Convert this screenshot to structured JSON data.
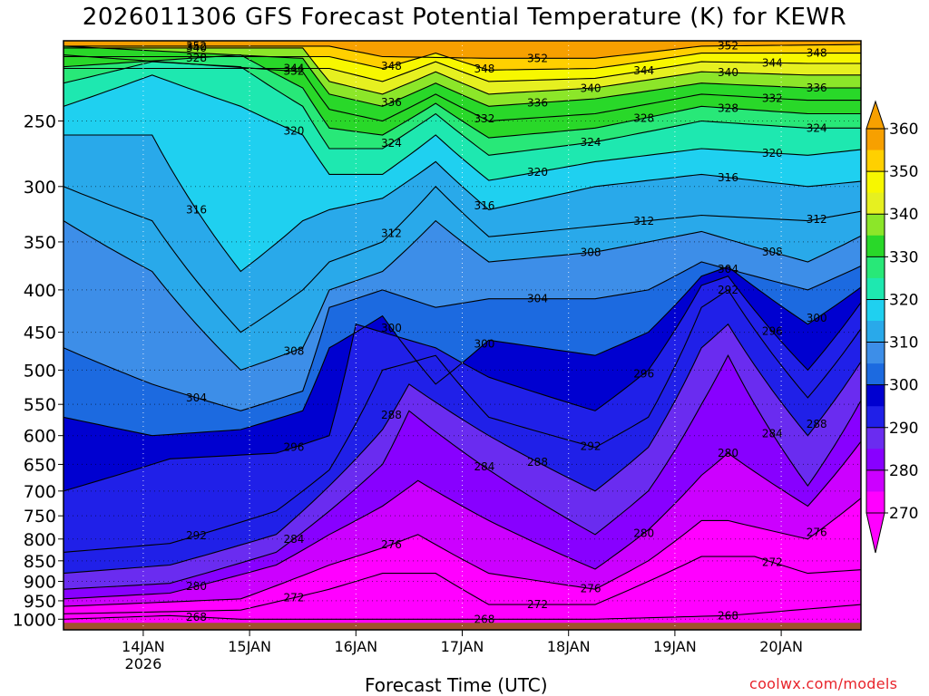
{
  "title": "2026011306 GFS Forecast Potential Temperature (K) for KEWR",
  "credit": "coolwx.com/models",
  "chart_data": {
    "type": "heatmap",
    "title": "2026011306 GFS Forecast Potential Temperature (K) for KEWR",
    "xlabel": "Forecast Time (UTC)",
    "ylabel": "",
    "x_start": "2026-01-13 06Z",
    "x_end": "2026-01-20 18Z",
    "x_ticks": [
      {
        "label": "14JAN",
        "sublabel": "2026",
        "time": "2026-01-14 00Z"
      },
      {
        "label": "15JAN",
        "sublabel": "",
        "time": "2026-01-15 00Z"
      },
      {
        "label": "16JAN",
        "sublabel": "",
        "time": "2026-01-16 00Z"
      },
      {
        "label": "17JAN",
        "sublabel": "",
        "time": "2026-01-17 00Z"
      },
      {
        "label": "18JAN",
        "sublabel": "",
        "time": "2026-01-18 00Z"
      },
      {
        "label": "19JAN",
        "sublabel": "",
        "time": "2026-01-19 00Z"
      },
      {
        "label": "20JAN",
        "sublabel": "",
        "time": "2026-01-20 00Z"
      }
    ],
    "y_scale": "log",
    "y_inverted": true,
    "ylim": [
      1030,
      200
    ],
    "y_ticks": [
      250,
      300,
      350,
      400,
      450,
      500,
      550,
      600,
      650,
      700,
      750,
      800,
      850,
      900,
      950,
      1000
    ],
    "grid": true,
    "color_scale": {
      "min": 270,
      "max": 360,
      "tick_labels": [
        360,
        350,
        340,
        330,
        320,
        310,
        300,
        290,
        280,
        270
      ],
      "colors": [
        "#ff00ff",
        "#cc00ff",
        "#8800ff",
        "#6a2cf0",
        "#2020e8",
        "#0000d0",
        "#1c6ae0",
        "#3d8ee8",
        "#29a9ea",
        "#1fd0f0",
        "#1ee8b0",
        "#28e878",
        "#29d829",
        "#8ce629",
        "#e6f020",
        "#f7f700",
        "#ffd000",
        "#f7a000"
      ]
    },
    "isotherms": [
      {
        "value": 268,
        "series": [
          [
            0,
            1000
          ],
          [
            24,
            990
          ],
          [
            40,
            1000
          ],
          [
            72,
            1000
          ],
          [
            120,
            1000
          ],
          [
            150,
            990
          ],
          [
            180,
            960
          ],
          [
            182,
            1000
          ]
        ]
      },
      {
        "value": 272,
        "series": [
          [
            0,
            985
          ],
          [
            40,
            975
          ],
          [
            60,
            920
          ],
          [
            72,
            880
          ],
          [
            84,
            880
          ],
          [
            96,
            960
          ],
          [
            120,
            960
          ],
          [
            132,
            900
          ],
          [
            144,
            840
          ],
          [
            156,
            840
          ],
          [
            168,
            880
          ],
          [
            182,
            870
          ]
        ]
      },
      {
        "value": 276,
        "series": [
          [
            0,
            965
          ],
          [
            40,
            945
          ],
          [
            60,
            860
          ],
          [
            72,
            820
          ],
          [
            80,
            790
          ],
          [
            96,
            880
          ],
          [
            120,
            920
          ],
          [
            132,
            850
          ],
          [
            144,
            760
          ],
          [
            150,
            760
          ],
          [
            168,
            800
          ],
          [
            182,
            700
          ]
        ]
      },
      {
        "value": 280,
        "series": [
          [
            0,
            945
          ],
          [
            24,
            930
          ],
          [
            48,
            860
          ],
          [
            60,
            790
          ],
          [
            72,
            730
          ],
          [
            80,
            680
          ],
          [
            96,
            760
          ],
          [
            120,
            870
          ],
          [
            132,
            780
          ],
          [
            144,
            670
          ],
          [
            150,
            630
          ],
          [
            168,
            730
          ],
          [
            182,
            590
          ]
        ]
      },
      {
        "value": 284,
        "series": [
          [
            0,
            920
          ],
          [
            24,
            905
          ],
          [
            48,
            830
          ],
          [
            60,
            740
          ],
          [
            72,
            650
          ],
          [
            78,
            560
          ],
          [
            96,
            660
          ],
          [
            120,
            790
          ],
          [
            132,
            700
          ],
          [
            144,
            550
          ],
          [
            150,
            480
          ],
          [
            168,
            690
          ],
          [
            182,
            520
          ]
        ]
      },
      {
        "value": 288,
        "series": [
          [
            0,
            880
          ],
          [
            24,
            860
          ],
          [
            48,
            790
          ],
          [
            60,
            690
          ],
          [
            72,
            590
          ],
          [
            78,
            520
          ],
          [
            96,
            600
          ],
          [
            120,
            700
          ],
          [
            132,
            620
          ],
          [
            144,
            470
          ],
          [
            150,
            440
          ],
          [
            168,
            600
          ],
          [
            182,
            470
          ]
        ]
      },
      {
        "value": 292,
        "series": [
          [
            0,
            830
          ],
          [
            24,
            810
          ],
          [
            48,
            740
          ],
          [
            60,
            660
          ],
          [
            72,
            500
          ],
          [
            84,
            480
          ],
          [
            96,
            570
          ],
          [
            120,
            620
          ],
          [
            132,
            570
          ],
          [
            144,
            420
          ],
          [
            150,
            400
          ],
          [
            168,
            540
          ],
          [
            182,
            430
          ]
        ]
      },
      {
        "value": 296,
        "series": [
          [
            0,
            700
          ],
          [
            24,
            640
          ],
          [
            48,
            630
          ],
          [
            60,
            600
          ],
          [
            66,
            440
          ],
          [
            84,
            470
          ],
          [
            96,
            510
          ],
          [
            120,
            560
          ],
          [
            132,
            500
          ],
          [
            144,
            395
          ],
          [
            150,
            385
          ],
          [
            168,
            500
          ],
          [
            182,
            400
          ]
        ]
      },
      {
        "value": 300,
        "series": [
          [
            0,
            570
          ],
          [
            20,
            600
          ],
          [
            40,
            590
          ],
          [
            54,
            560
          ],
          [
            60,
            470
          ],
          [
            72,
            430
          ],
          [
            84,
            520
          ],
          [
            96,
            460
          ],
          [
            120,
            480
          ],
          [
            132,
            450
          ],
          [
            144,
            385
          ],
          [
            150,
            375
          ],
          [
            168,
            440
          ],
          [
            182,
            390
          ]
        ]
      },
      {
        "value": 304,
        "series": [
          [
            0,
            470
          ],
          [
            20,
            520
          ],
          [
            40,
            560
          ],
          [
            54,
            530
          ],
          [
            60,
            420
          ],
          [
            72,
            400
          ],
          [
            84,
            420
          ],
          [
            96,
            410
          ],
          [
            120,
            410
          ],
          [
            132,
            400
          ],
          [
            144,
            370
          ],
          [
            168,
            400
          ],
          [
            182,
            370
          ]
        ]
      },
      {
        "value": 308,
        "series": [
          [
            0,
            330
          ],
          [
            20,
            380
          ],
          [
            40,
            500
          ],
          [
            54,
            470
          ],
          [
            60,
            400
          ],
          [
            72,
            380
          ],
          [
            84,
            330
          ],
          [
            96,
            370
          ],
          [
            120,
            360
          ],
          [
            144,
            340
          ],
          [
            168,
            370
          ],
          [
            182,
            340
          ]
        ]
      },
      {
        "value": 312,
        "series": [
          [
            0,
            300
          ],
          [
            20,
            330
          ],
          [
            40,
            450
          ],
          [
            54,
            400
          ],
          [
            60,
            370
          ],
          [
            72,
            350
          ],
          [
            84,
            300
          ],
          [
            96,
            345
          ],
          [
            120,
            335
          ],
          [
            144,
            325
          ],
          [
            168,
            330
          ],
          [
            182,
            320
          ]
        ]
      },
      {
        "value": 316,
        "series": [
          [
            0,
            260
          ],
          [
            20,
            260
          ],
          [
            40,
            380
          ],
          [
            54,
            330
          ],
          [
            60,
            320
          ],
          [
            72,
            310
          ],
          [
            84,
            280
          ],
          [
            96,
            320
          ],
          [
            120,
            300
          ],
          [
            144,
            290
          ],
          [
            168,
            300
          ],
          [
            182,
            295
          ]
        ]
      },
      {
        "value": 320,
        "series": [
          [
            0,
            240
          ],
          [
            20,
            220
          ],
          [
            40,
            240
          ],
          [
            54,
            260
          ],
          [
            60,
            290
          ],
          [
            72,
            290
          ],
          [
            84,
            260
          ],
          [
            96,
            295
          ],
          [
            120,
            280
          ],
          [
            144,
            270
          ],
          [
            168,
            275
          ],
          [
            182,
            270
          ]
        ]
      },
      {
        "value": 324,
        "series": [
          [
            0,
            225
          ],
          [
            20,
            212
          ],
          [
            40,
            215
          ],
          [
            54,
            240
          ],
          [
            60,
            270
          ],
          [
            72,
            270
          ],
          [
            84,
            245
          ],
          [
            96,
            275
          ],
          [
            120,
            265
          ],
          [
            144,
            250
          ],
          [
            168,
            255
          ],
          [
            182,
            255
          ]
        ]
      },
      {
        "value": 328,
        "series": [
          [
            0,
            215
          ],
          [
            40,
            208
          ],
          [
            54,
            228
          ],
          [
            60,
            255
          ],
          [
            72,
            260
          ],
          [
            84,
            238
          ],
          [
            96,
            262
          ],
          [
            120,
            255
          ],
          [
            144,
            240
          ],
          [
            168,
            245
          ],
          [
            182,
            245
          ]
        ]
      },
      {
        "value": 332,
        "series": [
          [
            0,
            208
          ],
          [
            54,
            218
          ],
          [
            60,
            242
          ],
          [
            72,
            250
          ],
          [
            84,
            232
          ],
          [
            96,
            250
          ],
          [
            120,
            245
          ],
          [
            144,
            232
          ],
          [
            168,
            236
          ],
          [
            182,
            236
          ]
        ]
      },
      {
        "value": 336,
        "series": [
          [
            0,
            203
          ],
          [
            54,
            210
          ],
          [
            60,
            232
          ],
          [
            72,
            240
          ],
          [
            84,
            225
          ],
          [
            96,
            240
          ],
          [
            120,
            235
          ],
          [
            144,
            225
          ],
          [
            168,
            228
          ],
          [
            182,
            228
          ]
        ]
      },
      {
        "value": 340,
        "series": [
          [
            54,
            204
          ],
          [
            60,
            224
          ],
          [
            72,
            232
          ],
          [
            84,
            218
          ],
          [
            96,
            232
          ],
          [
            120,
            228
          ],
          [
            144,
            218
          ],
          [
            168,
            220
          ],
          [
            182,
            220
          ]
        ]
      },
      {
        "value": 344,
        "series": [
          [
            60,
            216
          ],
          [
            72,
            224
          ],
          [
            84,
            212
          ],
          [
            96,
            224
          ],
          [
            120,
            222
          ],
          [
            144,
            212
          ],
          [
            168,
            213
          ],
          [
            182,
            213
          ]
        ]
      },
      {
        "value": 348,
        "series": [
          [
            60,
            209
          ],
          [
            72,
            216
          ],
          [
            84,
            207
          ],
          [
            96,
            217
          ],
          [
            120,
            216
          ],
          [
            144,
            207
          ],
          [
            168,
            207
          ],
          [
            182,
            207
          ]
        ]
      },
      {
        "value": 352,
        "series": [
          [
            60,
            203
          ],
          [
            72,
            209
          ],
          [
            96,
            210
          ],
          [
            120,
            210
          ],
          [
            144,
            203
          ],
          [
            182,
            202
          ]
        ]
      }
    ]
  }
}
